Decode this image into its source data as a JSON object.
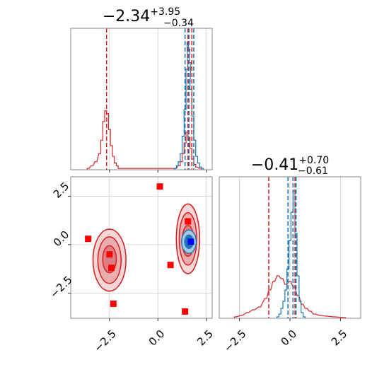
{
  "colors": {
    "red": "#d62728",
    "red_fill": "#e8a4a6",
    "blue": "#1f77b4",
    "point_red": "#ff0000",
    "point_blue": "#0000ff"
  },
  "titles": {
    "param1": {
      "base": "−2.34",
      "sup": "+3.95",
      "sub": "−0.34"
    },
    "param2": {
      "base": "−0.41",
      "sup": "+0.70",
      "sub": "−0.61"
    }
  },
  "chart_data": {
    "type": "corner",
    "grid": true,
    "panels": [
      {
        "id": "hist-param1",
        "type": "histogram",
        "xlim": [
          -4.5,
          2.8
        ],
        "xticks": [
          -2.5,
          0.0,
          2.5
        ],
        "series": [
          {
            "name": "",
            "color": "#d62728",
            "x": [
              -3.6,
              -3.4,
              -3.2,
              -3.0,
              -2.9,
              -2.8,
              -2.7,
              -2.6,
              -2.5,
              -2.4,
              -2.3,
              -2.2,
              -2.1,
              -2.0,
              0.9,
              1.1,
              1.2,
              1.3,
              1.4,
              1.5,
              1.6,
              1.7,
              1.8,
              1.9,
              2.0,
              2.2
            ],
            "y": [
              0.01,
              0.03,
              0.06,
              0.12,
              0.22,
              0.36,
              0.44,
              0.42,
              0.3,
              0.18,
              0.1,
              0.05,
              0.03,
              0.01,
              0.01,
              0.03,
              0.06,
              0.12,
              0.2,
              0.28,
              0.24,
              0.16,
              0.08,
              0.04,
              0.02,
              0.01
            ]
          },
          {
            "name": "",
            "color": "#1f77b4",
            "x": [
              0.9,
              1.0,
              1.1,
              1.2,
              1.3,
              1.4,
              1.5,
              1.55,
              1.6,
              1.65,
              1.7,
              1.8,
              1.9,
              2.0,
              2.1,
              2.2,
              2.3
            ],
            "y": [
              0.01,
              0.03,
              0.06,
              0.12,
              0.25,
              0.45,
              0.75,
              0.95,
              0.9,
              0.8,
              0.6,
              0.4,
              0.22,
              0.1,
              0.05,
              0.02,
              0.01
            ]
          }
        ],
        "vlines": [
          {
            "x": -2.65,
            "color": "#d62728"
          },
          {
            "x": 1.4,
            "color": "#1f77b4"
          },
          {
            "x": 1.6,
            "color": "#1f77b4"
          },
          {
            "x": 1.85,
            "color": "#1f77b4"
          },
          {
            "x": 1.55,
            "color": "#d62728"
          },
          {
            "x": 1.75,
            "color": "#d62728"
          }
        ]
      },
      {
        "id": "hist-param2",
        "type": "histogram",
        "xlim": [
          -3.5,
          3.5
        ],
        "xticks": [
          -2.5,
          0.0,
          2.5
        ],
        "series": [
          {
            "name": "",
            "color": "#d62728",
            "x": [
              -2.7,
              -2.4,
              -2.1,
              -1.8,
              -1.5,
              -1.2,
              -1.0,
              -0.8,
              -0.6,
              -0.4,
              -0.2,
              0.0,
              0.2,
              0.4,
              0.6,
              0.8,
              1.0,
              1.2,
              1.5,
              1.8,
              2.2,
              2.7
            ],
            "y": [
              0.01,
              0.02,
              0.04,
              0.06,
              0.08,
              0.14,
              0.2,
              0.26,
              0.3,
              0.28,
              0.24,
              0.26,
              0.22,
              0.16,
              0.1,
              0.07,
              0.05,
              0.03,
              0.02,
              0.015,
              0.01,
              0.005
            ]
          },
          {
            "name": "",
            "color": "#1f77b4",
            "x": [
              -0.6,
              -0.5,
              -0.4,
              -0.3,
              -0.2,
              -0.1,
              0.0,
              0.1,
              0.2,
              0.3,
              0.4,
              0.5,
              0.6,
              0.7
            ],
            "y": [
              0.01,
              0.03,
              0.07,
              0.12,
              0.2,
              0.35,
              0.55,
              0.75,
              0.9,
              0.6,
              0.3,
              0.12,
              0.04,
              0.01
            ]
          }
        ],
        "vlines": [
          {
            "x": -1.05,
            "color": "#d62728"
          },
          {
            "x": 0.25,
            "color": "#d62728"
          },
          {
            "x": -0.1,
            "color": "#1f77b4"
          },
          {
            "x": 0.15,
            "color": "#1f77b4"
          },
          {
            "x": 0.3,
            "color": "#1f77b4"
          }
        ]
      },
      {
        "id": "scatter-2d",
        "type": "contour-scatter",
        "xlim": [
          -4.5,
          2.8
        ],
        "ylim": [
          -3.8,
          3.5
        ],
        "xticks": [
          -2.5,
          0.0,
          2.5
        ],
        "yticks": [
          -2.5,
          0.0,
          2.5
        ],
        "red_contours": [
          {
            "cx": -2.5,
            "cy": -0.8,
            "rx": 0.85,
            "ry": 1.6,
            "fill": "#f3d0d1"
          },
          {
            "cx": -2.5,
            "cy": -0.8,
            "rx": 0.6,
            "ry": 1.2,
            "fill": "#e8a4a6"
          },
          {
            "cx": -2.5,
            "cy": -0.75,
            "rx": 0.35,
            "ry": 0.7,
            "fill": "#d9757a"
          },
          {
            "cx": 1.55,
            "cy": 0.3,
            "rx": 0.6,
            "ry": 1.8,
            "fill": "#f3d0d1"
          },
          {
            "cx": 1.55,
            "cy": 0.3,
            "rx": 0.45,
            "ry": 1.35,
            "fill": "#e8a4a6"
          },
          {
            "cx": 1.55,
            "cy": 0.2,
            "rx": 0.3,
            "ry": 0.8,
            "fill": "#d9757a"
          }
        ],
        "blue_contours": [
          {
            "cx": 1.6,
            "cy": 0.15,
            "rx": 0.38,
            "ry": 0.6,
            "fill": "#a6c8e3"
          },
          {
            "cx": 1.6,
            "cy": 0.15,
            "rx": 0.22,
            "ry": 0.35,
            "fill": "#1f77b4"
          }
        ],
        "red_points": [
          {
            "x": 0.1,
            "y": 3.0
          },
          {
            "x": -3.6,
            "y": 0.3
          },
          {
            "x": 1.55,
            "y": 1.2
          },
          {
            "x": 0.65,
            "y": -1.05
          },
          {
            "x": -2.5,
            "y": -0.5
          },
          {
            "x": -2.4,
            "y": -1.2
          },
          {
            "x": -2.3,
            "y": -3.05
          },
          {
            "x": 1.4,
            "y": -3.45
          }
        ],
        "blue_points": [
          {
            "x": 1.7,
            "y": 0.15
          }
        ]
      }
    ]
  }
}
